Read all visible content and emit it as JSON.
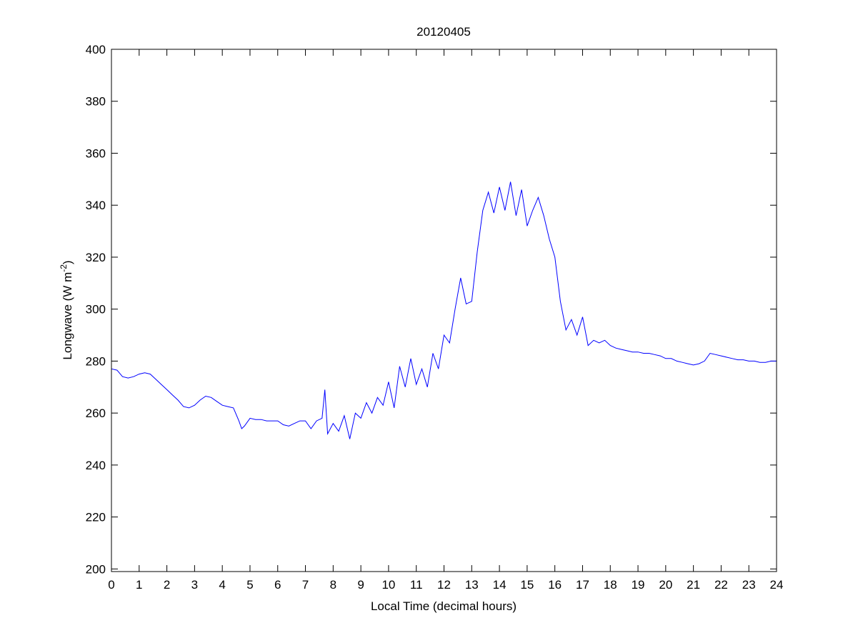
{
  "chart_data": {
    "type": "line",
    "title": "20120405",
    "xlabel": "Local Time (decimal hours)",
    "ylabel": "Longwave (W m",
    "ylabel_superscript": "-2",
    "ylabel_close": ")",
    "xlim": [
      0,
      24
    ],
    "ylim": [
      199,
      400
    ],
    "xticks": [
      0,
      1,
      2,
      3,
      4,
      5,
      6,
      7,
      8,
      9,
      10,
      11,
      12,
      13,
      14,
      15,
      16,
      17,
      18,
      19,
      20,
      21,
      22,
      23,
      24
    ],
    "yticks": [
      200,
      220,
      240,
      260,
      280,
      300,
      320,
      340,
      360,
      380,
      400
    ],
    "grid": false,
    "line_color": "#0000ff",
    "series": [
      {
        "points": [
          [
            0,
            277
          ],
          [
            0.2,
            276.5
          ],
          [
            0.4,
            274
          ],
          [
            0.6,
            273.5
          ],
          [
            0.8,
            274
          ],
          [
            1.0,
            275
          ],
          [
            1.2,
            275.5
          ],
          [
            1.4,
            275
          ],
          [
            1.6,
            273
          ],
          [
            1.8,
            271
          ],
          [
            2.0,
            269
          ],
          [
            2.2,
            267
          ],
          [
            2.4,
            265
          ],
          [
            2.6,
            262.5
          ],
          [
            2.8,
            262
          ],
          [
            3.0,
            263
          ],
          [
            3.2,
            265
          ],
          [
            3.4,
            266.5
          ],
          [
            3.6,
            266
          ],
          [
            3.8,
            264.5
          ],
          [
            4.0,
            263
          ],
          [
            4.2,
            262.5
          ],
          [
            4.4,
            262
          ],
          [
            4.6,
            257
          ],
          [
            4.7,
            254
          ],
          [
            4.8,
            255
          ],
          [
            5.0,
            258
          ],
          [
            5.2,
            257.5
          ],
          [
            5.4,
            257.5
          ],
          [
            5.6,
            257
          ],
          [
            5.8,
            257
          ],
          [
            6.0,
            257
          ],
          [
            6.2,
            255.5
          ],
          [
            6.4,
            255
          ],
          [
            6.6,
            256
          ],
          [
            6.8,
            257
          ],
          [
            7.0,
            257
          ],
          [
            7.2,
            254
          ],
          [
            7.4,
            257
          ],
          [
            7.6,
            258
          ],
          [
            7.7,
            269
          ],
          [
            7.8,
            252
          ],
          [
            8.0,
            256
          ],
          [
            8.2,
            253
          ],
          [
            8.4,
            259
          ],
          [
            8.6,
            250
          ],
          [
            8.8,
            260
          ],
          [
            9.0,
            258
          ],
          [
            9.2,
            264
          ],
          [
            9.4,
            260
          ],
          [
            9.6,
            266
          ],
          [
            9.8,
            263
          ],
          [
            10.0,
            272
          ],
          [
            10.2,
            262
          ],
          [
            10.4,
            278
          ],
          [
            10.6,
            270
          ],
          [
            10.8,
            281
          ],
          [
            11.0,
            271
          ],
          [
            11.2,
            277
          ],
          [
            11.4,
            270
          ],
          [
            11.6,
            283
          ],
          [
            11.8,
            277
          ],
          [
            12.0,
            290
          ],
          [
            12.2,
            287
          ],
          [
            12.4,
            300
          ],
          [
            12.6,
            312
          ],
          [
            12.8,
            302
          ],
          [
            13.0,
            303
          ],
          [
            13.2,
            322
          ],
          [
            13.4,
            338
          ],
          [
            13.6,
            345
          ],
          [
            13.8,
            337
          ],
          [
            14.0,
            347
          ],
          [
            14.2,
            338
          ],
          [
            14.4,
            349
          ],
          [
            14.6,
            336
          ],
          [
            14.8,
            346
          ],
          [
            15.0,
            332
          ],
          [
            15.2,
            338
          ],
          [
            15.4,
            343
          ],
          [
            15.6,
            336
          ],
          [
            15.8,
            327
          ],
          [
            16.0,
            320
          ],
          [
            16.2,
            303
          ],
          [
            16.4,
            292
          ],
          [
            16.6,
            296
          ],
          [
            16.8,
            290
          ],
          [
            17.0,
            297
          ],
          [
            17.2,
            286
          ],
          [
            17.4,
            288
          ],
          [
            17.6,
            287
          ],
          [
            17.8,
            288
          ],
          [
            18.0,
            286
          ],
          [
            18.2,
            285
          ],
          [
            18.4,
            284.5
          ],
          [
            18.6,
            284
          ],
          [
            18.8,
            283.5
          ],
          [
            19.0,
            283.5
          ],
          [
            19.2,
            283
          ],
          [
            19.4,
            283
          ],
          [
            19.6,
            282.5
          ],
          [
            19.8,
            282
          ],
          [
            20.0,
            281
          ],
          [
            20.2,
            281
          ],
          [
            20.4,
            280
          ],
          [
            20.6,
            279.5
          ],
          [
            20.8,
            279
          ],
          [
            21.0,
            278.5
          ],
          [
            21.2,
            279
          ],
          [
            21.4,
            280
          ],
          [
            21.6,
            283
          ],
          [
            21.8,
            282.5
          ],
          [
            22.0,
            282
          ],
          [
            22.2,
            281.5
          ],
          [
            22.4,
            281
          ],
          [
            22.6,
            280.5
          ],
          [
            22.8,
            280.5
          ],
          [
            23.0,
            280
          ],
          [
            23.2,
            280
          ],
          [
            23.4,
            279.5
          ],
          [
            23.6,
            279.5
          ],
          [
            23.8,
            280
          ],
          [
            24.0,
            280
          ]
        ]
      }
    ]
  }
}
